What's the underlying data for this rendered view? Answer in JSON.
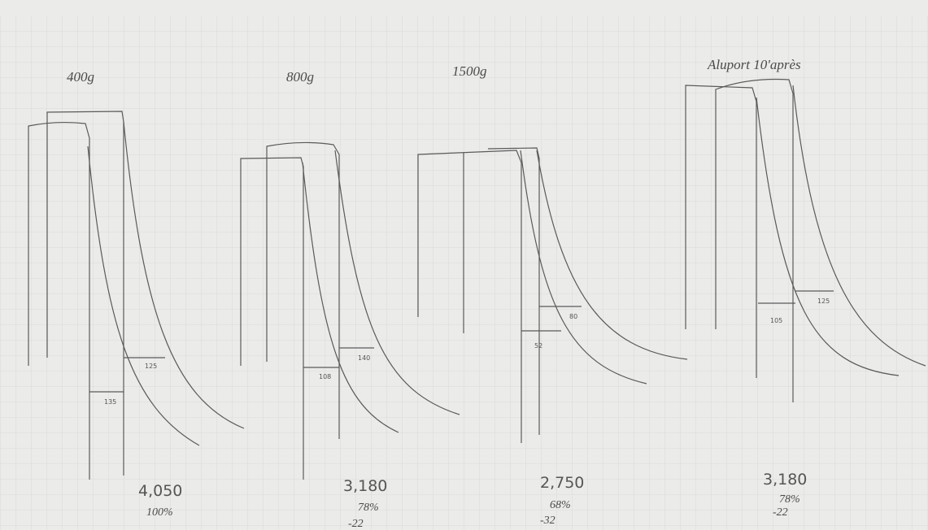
{
  "panels": [
    {
      "label": "400g",
      "annotations": [
        "135",
        "125"
      ],
      "result": "4,050",
      "percent": "100%"
    },
    {
      "label": "800g",
      "annotations": [
        "108",
        "140"
      ],
      "result": "3,180",
      "percent": "78%",
      "diff": "-22"
    },
    {
      "label": "1500g",
      "annotations": [
        "52",
        "80"
      ],
      "result": "2,750",
      "percent": "68%",
      "diff": "-32"
    },
    {
      "label": "Aluport 10'après",
      "annotations": [
        "105",
        "125"
      ],
      "result": "3,180",
      "percent": "78%",
      "diff": "-22"
    }
  ]
}
